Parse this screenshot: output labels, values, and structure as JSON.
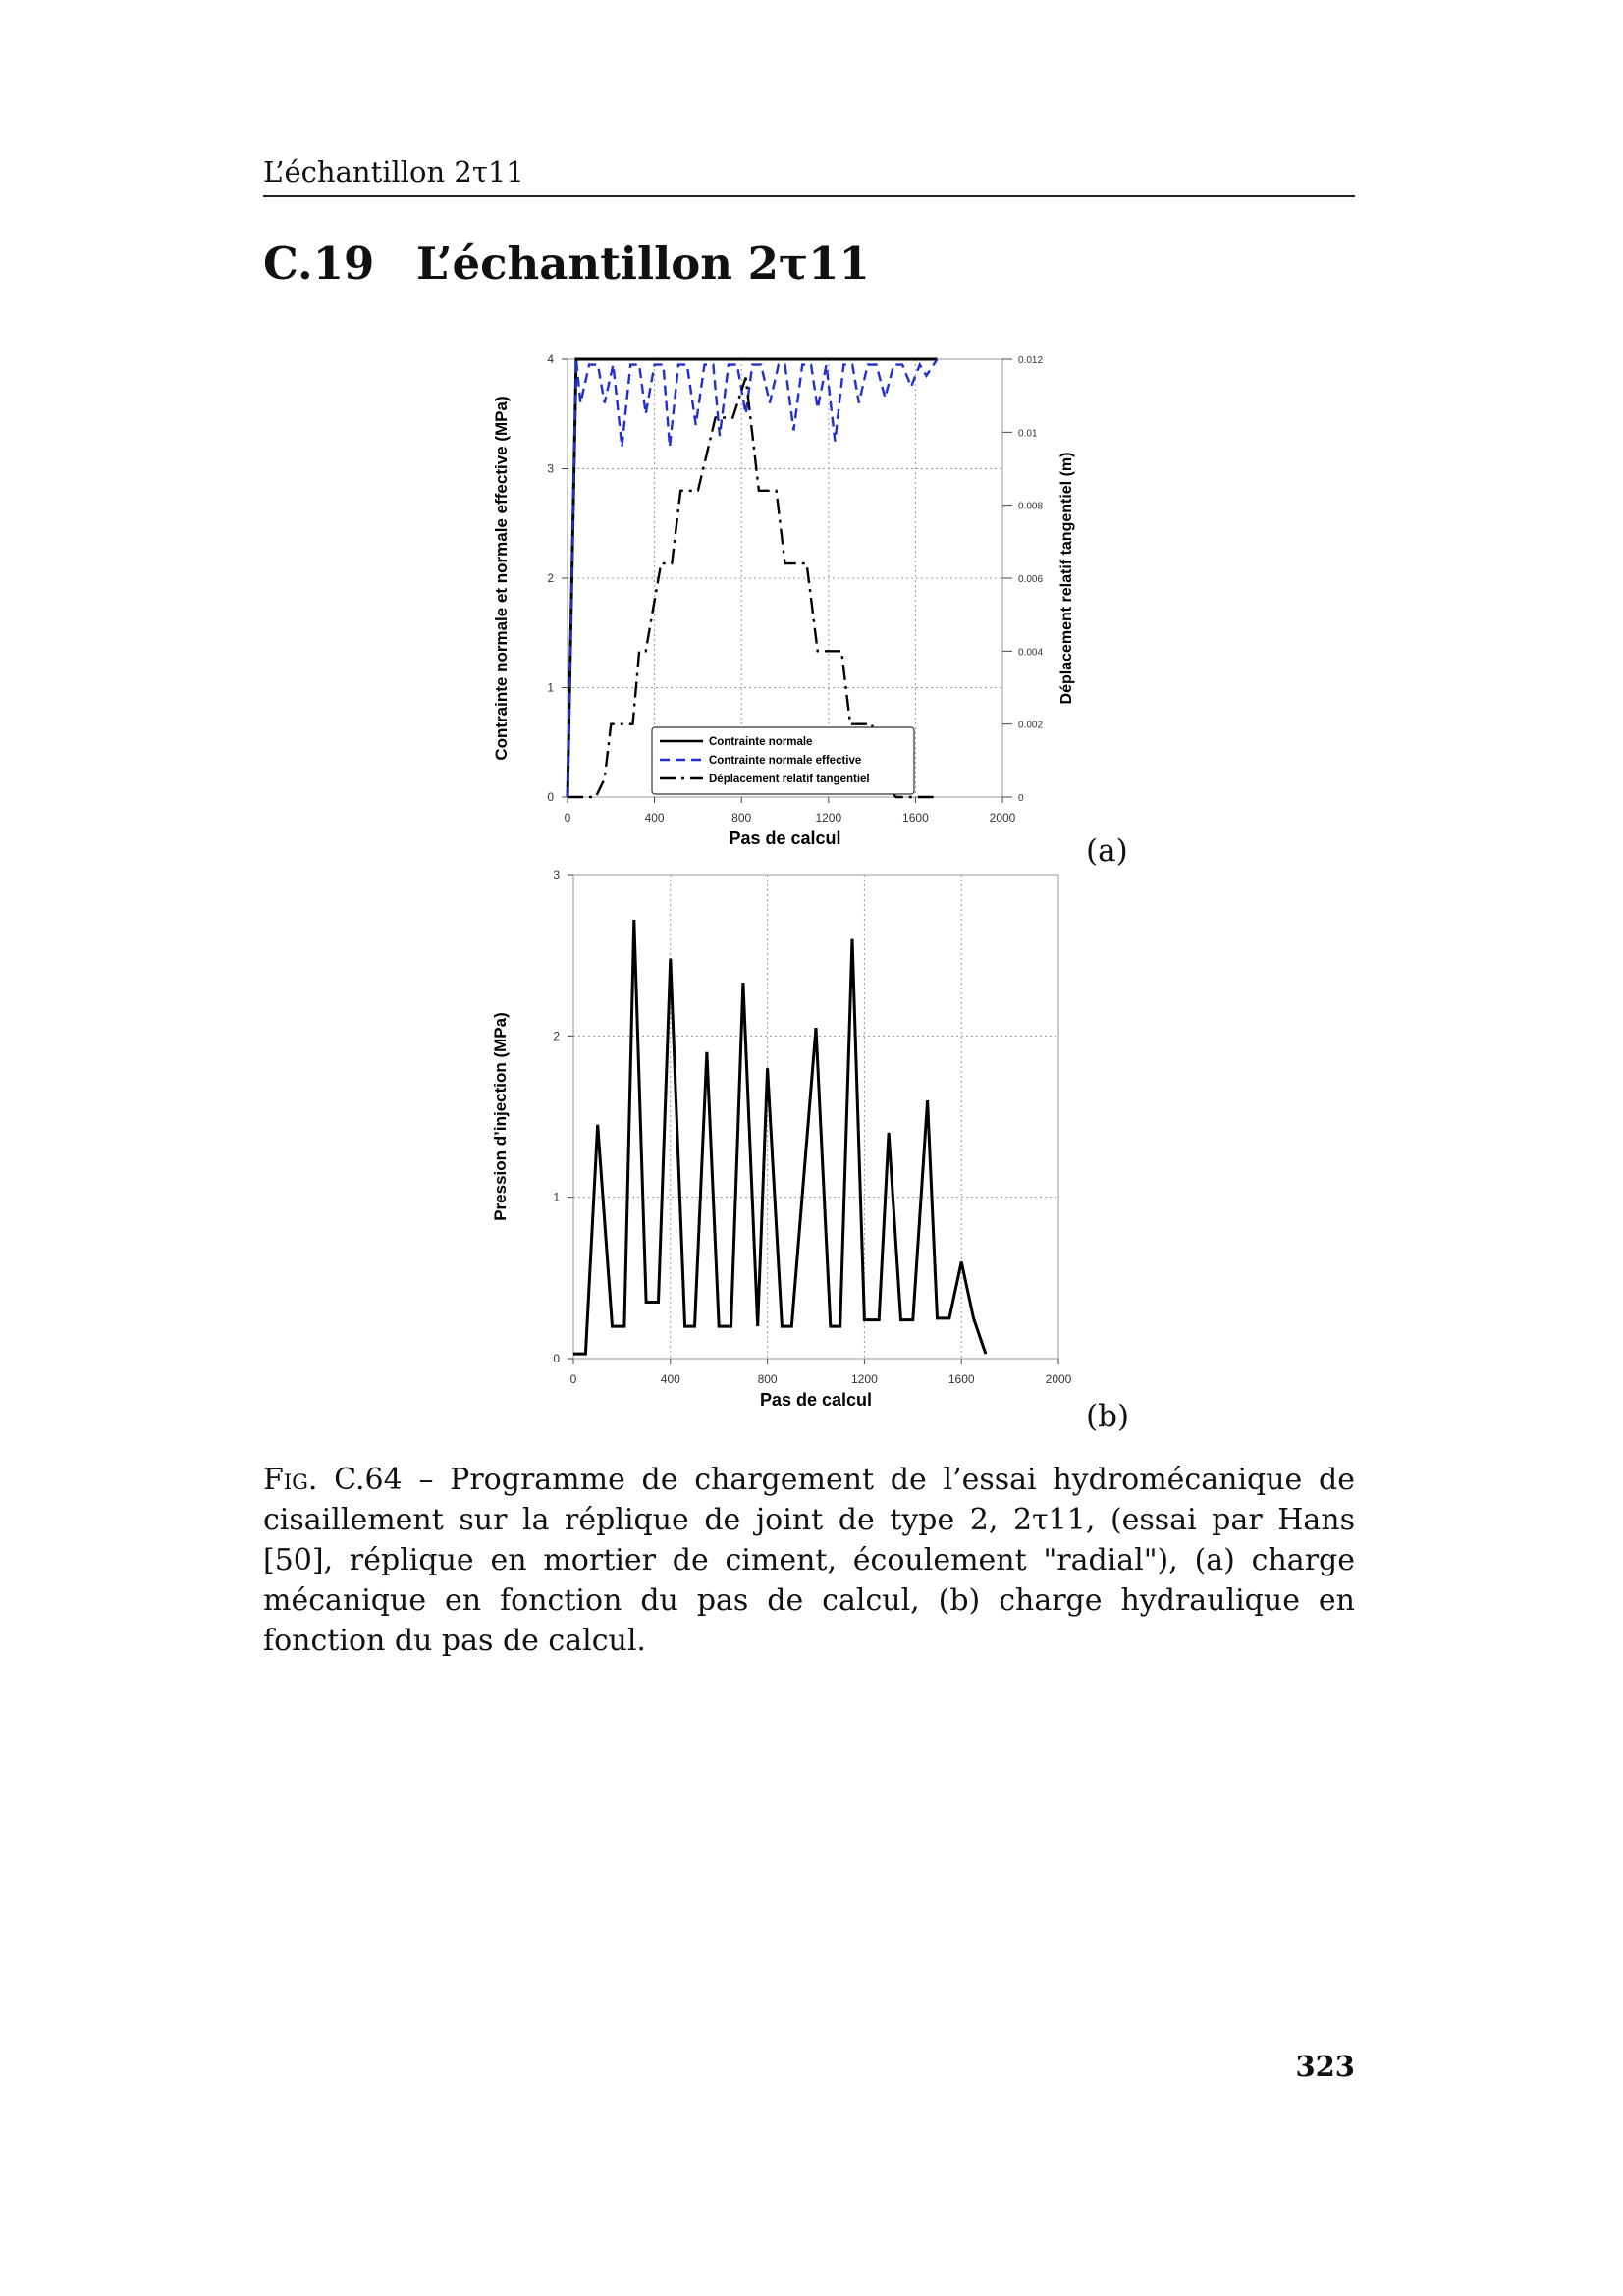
{
  "header": {
    "running_title": "L’échantillon 2τ11"
  },
  "section": {
    "number": "C.19",
    "title": "L’échantillon 2τ11"
  },
  "figure": {
    "panel_labels": [
      "(a)",
      "(b)"
    ],
    "caption_label": "Fig. C.64",
    "caption_text": " – Programme de chargement de l’essai hydromécanique de cisaillement sur la réplique de joint de type 2, 2τ11, (essai par Hans [50], réplique en mortier de ciment, écoulement \"radial\"), (a) charge mécanique en fonction du pas de calcul, (b) charge hydraulique en fonction du pas de calcul."
  },
  "page": {
    "number": "323"
  },
  "chart_data": [
    {
      "type": "line",
      "panel": "(a)",
      "xlabel": "Pas de calcul",
      "ylabel": "Contrainte normale et normale effective (MPa)",
      "y2label": "Déplacement relatif tangentiel (m)",
      "xlim": [
        0,
        2000
      ],
      "ylim": [
        0,
        4
      ],
      "y2lim": [
        0,
        0.012
      ],
      "xticks": [
        "0",
        "400",
        "800",
        "1200",
        "1600",
        "2000"
      ],
      "yticks": [
        "0",
        "1",
        "2",
        "3",
        "4"
      ],
      "y2ticks": [
        "0",
        "0.002",
        "0.004",
        "0.006",
        "0.008",
        "0.01",
        "0.012"
      ],
      "grid": true,
      "legend_position": "bottom-center",
      "series": [
        {
          "name": "Contrainte normale",
          "axis": "left",
          "color": "#000000",
          "style": "solid",
          "x": [
            0,
            40,
            1700
          ],
          "y": [
            0,
            4,
            4
          ]
        },
        {
          "name": "Contrainte normale effective",
          "axis": "left",
          "color": "#1f2fd0",
          "style": "dashed",
          "x": [
            0,
            40,
            60,
            100,
            140,
            170,
            210,
            250,
            290,
            330,
            360,
            400,
            440,
            470,
            510,
            550,
            590,
            630,
            670,
            700,
            740,
            780,
            820,
            850,
            890,
            930,
            970,
            1000,
            1040,
            1080,
            1120,
            1150,
            1190,
            1230,
            1270,
            1310,
            1340,
            1380,
            1420,
            1460,
            1500,
            1540,
            1580,
            1620,
            1650,
            1700
          ],
          "y": [
            0,
            4,
            3.6,
            3.95,
            3.95,
            3.6,
            3.95,
            3.2,
            3.95,
            3.95,
            3.5,
            3.95,
            3.95,
            3.2,
            3.95,
            3.95,
            3.4,
            3.95,
            3.95,
            3.3,
            3.95,
            3.95,
            3.5,
            3.95,
            3.95,
            3.6,
            3.95,
            3.95,
            3.35,
            3.95,
            3.95,
            3.55,
            3.95,
            3.25,
            3.95,
            3.95,
            3.6,
            3.95,
            3.95,
            3.65,
            3.95,
            3.95,
            3.75,
            3.95,
            3.85,
            4
          ]
        },
        {
          "name": "Déplacement relatif tangentiel",
          "axis": "right",
          "color": "#000000",
          "style": "dashdot",
          "x": [
            0,
            130,
            170,
            200,
            230,
            300,
            330,
            360,
            430,
            480,
            520,
            600,
            680,
            760,
            820,
            880,
            920,
            960,
            1000,
            1040,
            1100,
            1150,
            1190,
            1260,
            1300,
            1340,
            1400,
            1440,
            1510,
            1560,
            1600,
            1700
          ],
          "y": [
            0,
            0,
            0.0005,
            0.002,
            0.002,
            0.002,
            0.004,
            0.004,
            0.0064,
            0.0064,
            0.0084,
            0.0084,
            0.0104,
            0.0104,
            0.0115,
            0.0084,
            0.0084,
            0.0084,
            0.0064,
            0.0064,
            0.0064,
            0.004,
            0.004,
            0.004,
            0.002,
            0.002,
            0.002,
            0.0005,
            0,
            0,
            0,
            0
          ]
        }
      ]
    },
    {
      "type": "line",
      "panel": "(b)",
      "xlabel": "Pas de calcul",
      "ylabel": "Pression d’injection (MPa)",
      "xlim": [
        0,
        2000
      ],
      "ylim": [
        0,
        3
      ],
      "xticks": [
        "0",
        "400",
        "800",
        "1200",
        "1600",
        "2000"
      ],
      "yticks": [
        "0",
        "1",
        "2",
        "3"
      ],
      "grid": true,
      "series": [
        {
          "name": "",
          "color": "#000000",
          "style": "solid",
          "x": [
            0,
            50,
            100,
            160,
            210,
            250,
            300,
            350,
            400,
            460,
            500,
            550,
            600,
            650,
            700,
            760,
            800,
            860,
            900,
            1000,
            1060,
            1100,
            1150,
            1200,
            1260,
            1300,
            1350,
            1400,
            1460,
            1500,
            1550,
            1600,
            1650,
            1700
          ],
          "y": [
            0.03,
            0.03,
            1.45,
            0.2,
            0.2,
            2.72,
            0.35,
            0.35,
            2.48,
            0.2,
            0.2,
            1.9,
            0.2,
            0.2,
            2.33,
            0.2,
            1.8,
            0.2,
            0.2,
            2.05,
            0.2,
            0.2,
            2.6,
            0.24,
            0.24,
            1.4,
            0.24,
            0.24,
            1.6,
            0.25,
            0.25,
            0.6,
            0.25,
            0.03
          ]
        }
      ]
    }
  ]
}
